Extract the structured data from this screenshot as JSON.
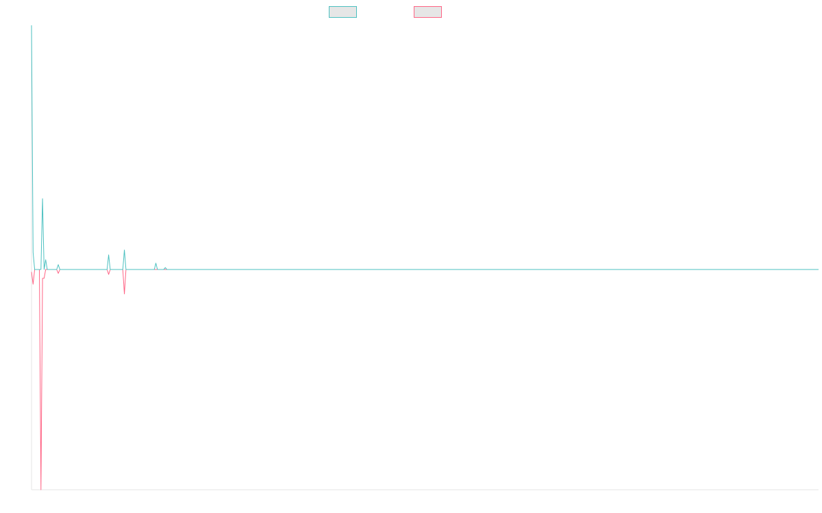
{
  "chart_data": {
    "type": "line",
    "title": "",
    "xlabel": "",
    "ylabel": "",
    "grid": false,
    "legend_position": "top-center",
    "x_range": [
      0,
      500
    ],
    "ylim": [
      -45,
      50
    ],
    "baseline": 0,
    "series": [
      {
        "color": "#4bc0c0",
        "legend_fill": "#e6e6e6",
        "points": [
          [
            0,
            50
          ],
          [
            1,
            3.5
          ],
          [
            2,
            0
          ],
          [
            6,
            0
          ],
          [
            7,
            14.5
          ],
          [
            8,
            0
          ],
          [
            9,
            2
          ],
          [
            10,
            0
          ],
          [
            16,
            0
          ],
          [
            17,
            1
          ],
          [
            18,
            0
          ],
          [
            48,
            0
          ],
          [
            49,
            3
          ],
          [
            50,
            0
          ],
          [
            58,
            0
          ],
          [
            59,
            4
          ],
          [
            60,
            0
          ],
          [
            78,
            0
          ],
          [
            79,
            1.3
          ],
          [
            80,
            0
          ],
          [
            84,
            0
          ],
          [
            85,
            0.4
          ],
          [
            86,
            0
          ],
          [
            500,
            0
          ]
        ]
      },
      {
        "color": "#ff6384",
        "legend_fill": "#e6e6e6",
        "points": [
          [
            0,
            -0.5
          ],
          [
            1,
            -3
          ],
          [
            2,
            0
          ],
          [
            5,
            0
          ],
          [
            6,
            -45
          ],
          [
            7,
            -1.8
          ],
          [
            8,
            -1.8
          ],
          [
            9,
            0
          ],
          [
            16,
            0
          ],
          [
            17,
            -0.8
          ],
          [
            18,
            0
          ],
          [
            48,
            0
          ],
          [
            49,
            -1
          ],
          [
            50,
            0
          ],
          [
            58,
            0
          ],
          [
            59,
            -5
          ],
          [
            60,
            0
          ],
          [
            500,
            0
          ]
        ]
      }
    ]
  }
}
